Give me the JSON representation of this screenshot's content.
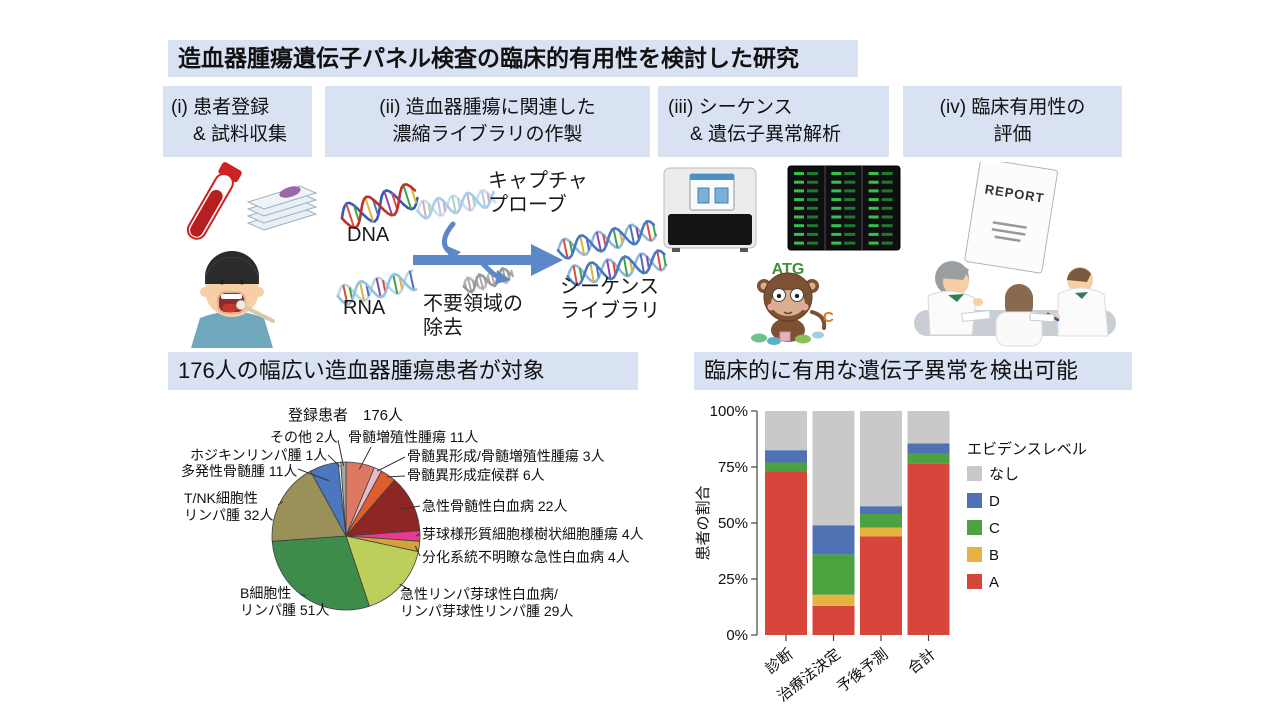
{
  "title": "造血器腫瘍遺伝子パネル検査の臨床的有用性を検討した研究",
  "steps": [
    {
      "line1": "(i) 患者登録",
      "line2": "& 試料収集"
    },
    {
      "line1": "(ii) 造血器腫瘍に関連した",
      "line2": "濃縮ライブラリの作製"
    },
    {
      "line1": "(iii) シーケンス",
      "line2": "& 遺伝子異常解析"
    },
    {
      "line1": "(iv) 臨床有用性の",
      "line2": "評価"
    }
  ],
  "workflow": {
    "dna": "DNA",
    "rna": "RNA",
    "capture_probe": [
      "キャプチャ",
      "プローブ"
    ],
    "removal": [
      "不要領域の",
      "除去"
    ],
    "library": [
      "シーケンス",
      "ライブラリ"
    ],
    "mascot_letters": "ATG",
    "mascot_letter_c": "C",
    "report_title": "REPORT"
  },
  "section_headers": {
    "left": "176人の幅広い造血器腫瘍患者が対象",
    "right": "臨床的に有用な遺伝子異常を検出可能"
  },
  "colors": {
    "panel": "#d9e2f2",
    "arrow_blue": "#5c88c8"
  },
  "chart_data": [
    {
      "type": "pie",
      "title": "登録患者　176人",
      "total": 176,
      "slices": [
        {
          "name": "骨髄増殖性腫瘍",
          "count": 11,
          "label_lines": [
            "骨髄増殖性腫瘍 11人"
          ],
          "color": "#DB7A61"
        },
        {
          "name": "骨髄異形成/骨髄増殖性腫瘍",
          "count": 3,
          "label_lines": [
            "骨髄異形成/骨髄増殖性腫瘍 3人"
          ],
          "color": "#E5BCC9"
        },
        {
          "name": "骨髄異形成症候群",
          "count": 6,
          "label_lines": [
            "骨髄異形成症候群 6人"
          ],
          "color": "#DF5E2E"
        },
        {
          "name": "急性骨髄性白血病",
          "count": 22,
          "label_lines": [
            "急性骨髄性白血病 22人"
          ],
          "color": "#8E2723"
        },
        {
          "name": "芽球様形質細胞様樹状細胞腫瘍",
          "count": 4,
          "label_lines": [
            "芽球様形質細胞様樹状細胞腫瘍 4人"
          ],
          "color": "#E83B8E"
        },
        {
          "name": "分化系統不明瞭な急性白血病",
          "count": 4,
          "label_lines": [
            "分化系統不明瞭な急性白血病 4人"
          ],
          "color": "#D2A33B"
        },
        {
          "name": "急性リンパ芽球性白血病/リンパ芽球性リンパ腫",
          "count": 29,
          "label_lines": [
            "急性リンパ芽球性白血病/",
            "リンパ芽球性リンパ腫 29人"
          ],
          "color": "#BDCF5A"
        },
        {
          "name": "B細胞性リンパ腫",
          "count": 51,
          "label_lines": [
            "B細胞性",
            "リンパ腫 51人"
          ],
          "color": "#3E8C4A"
        },
        {
          "name": "T/NK細胞性リンパ腫",
          "count": 32,
          "label_lines": [
            "T/NK細胞性",
            "リンパ腫 32人"
          ],
          "color": "#9A9159"
        },
        {
          "name": "多発性骨髄腫",
          "count": 11,
          "label_lines": [
            "多発性骨髄腫 11人"
          ],
          "color": "#4C76BE"
        },
        {
          "name": "ホジキンリンパ腫",
          "count": 1,
          "label_lines": [
            "ホジキンリンパ腫 1人"
          ],
          "color": "#ECF1F3"
        },
        {
          "name": "その他",
          "count": 2,
          "label_lines": [
            "その他 2人"
          ],
          "color": "#9EA7AA"
        }
      ]
    },
    {
      "type": "stacked_bar_percent",
      "ylabel": "患者の割合",
      "yticks": [
        "0%",
        "25%",
        "50%",
        "75%",
        "100%"
      ],
      "ytick_values": [
        0,
        25,
        50,
        75,
        100
      ],
      "categories": [
        "診断",
        "治療法決定",
        "予後予測",
        "合計"
      ],
      "legend_title": "エビデンスレベル",
      "legend_order": [
        "なし",
        "D",
        "C",
        "B",
        "A"
      ],
      "series": [
        {
          "name": "A",
          "color": "#D8453B",
          "values": [
            73,
            13,
            44,
            76.5
          ]
        },
        {
          "name": "B",
          "color": "#E5B33F",
          "values": [
            0,
            5,
            4,
            0
          ]
        },
        {
          "name": "C",
          "color": "#4BA23E",
          "values": [
            4,
            18,
            6,
            4.5
          ]
        },
        {
          "name": "D",
          "color": "#5071B4",
          "values": [
            5.5,
            13,
            3.5,
            4.5
          ]
        },
        {
          "name": "なし",
          "color": "#C9C9C9",
          "values": [
            17.5,
            51,
            42.5,
            14.5
          ]
        }
      ]
    }
  ]
}
